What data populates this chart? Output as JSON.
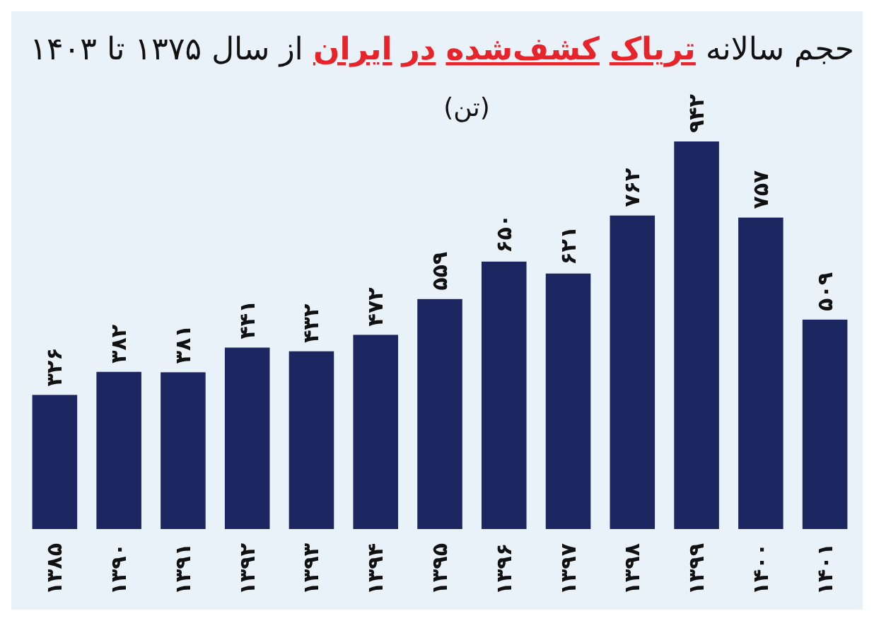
{
  "chart_data": {
    "type": "bar",
    "title": "حجم سالانه تریاک کشف‌شده در ایران از سال ۱۳۷۵ تا ۱۴۰۳",
    "subtitle": "(تن)",
    "categories": [
      "۱۳۸۵",
      "۱۳۹۰",
      "۱۳۹۱",
      "۱۳۹۲",
      "۱۳۹۳",
      "۱۳۹۴",
      "۱۳۹۵",
      "۱۳۹۶",
      "۱۳۹۷",
      "۱۳۹۸",
      "۱۳۹۹",
      "۱۴۰۰",
      "۱۴۰۱"
    ],
    "values": [
      326,
      382,
      381,
      441,
      432,
      472,
      559,
      650,
      621,
      762,
      942,
      757,
      509
    ],
    "value_labels": [
      "۳۲۶",
      "۳۸۲",
      "۳۸۱",
      "۴۴۱",
      "۴۳۲",
      "۴۷۲",
      "۵۵۹",
      "۶۵۰",
      "۶۲۱",
      "۷۶۲",
      "۹۴۲",
      "۷۵۷",
      "۵۰۹"
    ],
    "color": "#1c2660"
  }
}
